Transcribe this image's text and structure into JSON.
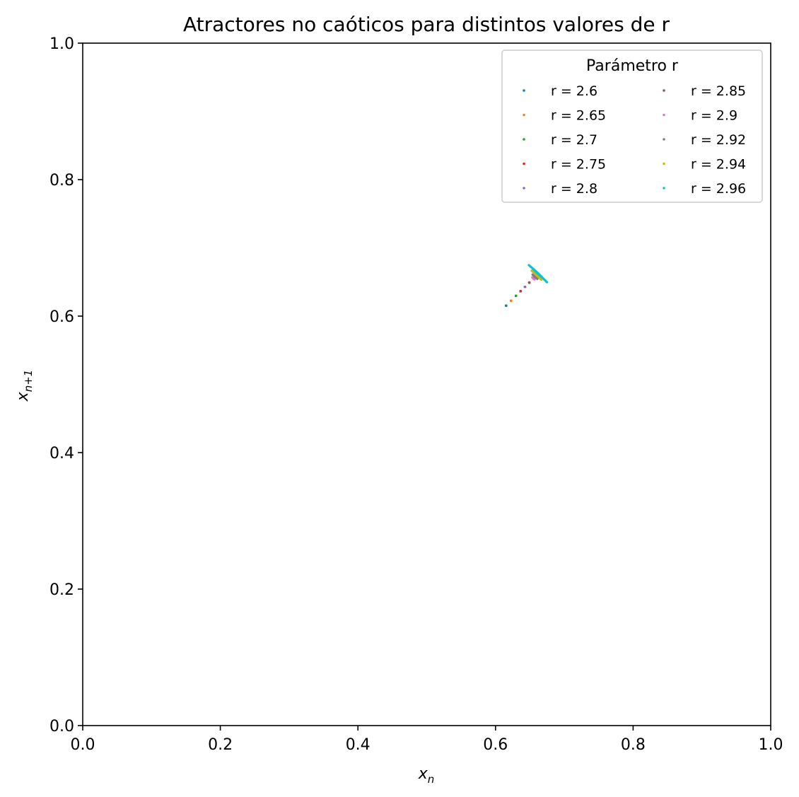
{
  "chart_data": {
    "type": "scatter",
    "title": "Atractores no caóticos para distintos valores de r",
    "xlabel_base": "x",
    "xlabel_sub": "n",
    "ylabel_base": "x",
    "ylabel_sub": "n+1",
    "xlim": [
      0.0,
      1.0
    ],
    "ylim": [
      0.0,
      1.0
    ],
    "x_ticks": [
      "0.0",
      "0.2",
      "0.4",
      "0.6",
      "0.8",
      "1.0"
    ],
    "y_ticks": [
      "0.0",
      "0.2",
      "0.4",
      "0.6",
      "0.8",
      "1.0"
    ],
    "grid": false,
    "legend": {
      "title": "Parámetro r",
      "placement": "top-right",
      "columns": 2
    },
    "series": [
      {
        "name": "r = 2.6",
        "r": 2.6,
        "color": "#1f77b4"
      },
      {
        "name": "r = 2.65",
        "r": 2.65,
        "color": "#ff7f0e"
      },
      {
        "name": "r = 2.7",
        "r": 2.7,
        "color": "#2ca02c"
      },
      {
        "name": "r = 2.75",
        "r": 2.75,
        "color": "#d62728"
      },
      {
        "name": "r = 2.8",
        "r": 2.8,
        "color": "#9467bd"
      },
      {
        "name": "r = 2.85",
        "r": 2.85,
        "color": "#8c564b"
      },
      {
        "name": "r = 2.9",
        "r": 2.9,
        "color": "#e377c2"
      },
      {
        "name": "r = 2.92",
        "r": 2.92,
        "color": "#7f7f7f"
      },
      {
        "name": "r = 2.94",
        "r": 2.94,
        "color": "#bcbd22"
      },
      {
        "name": "r = 2.96",
        "r": 2.96,
        "color": "#17becf"
      }
    ]
  }
}
